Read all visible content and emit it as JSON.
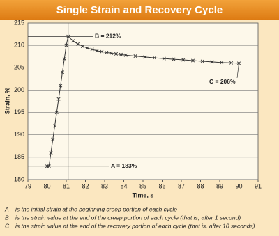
{
  "chart_data": {
    "type": "line",
    "title": "Single Strain and Recovery Cycle",
    "x_label": "Time, s",
    "y_label": "Strain, %",
    "x": [
      80.0,
      80.1,
      80.2,
      80.3,
      80.4,
      80.5,
      80.6,
      80.7,
      80.8,
      80.9,
      81.0,
      81.1,
      81.35,
      81.6,
      81.85,
      82.1,
      82.35,
      82.6,
      82.85,
      83.1,
      83.35,
      83.6,
      83.85,
      84.1,
      84.6,
      85.1,
      85.6,
      86.1,
      86.6,
      87.1,
      87.6,
      88.1,
      88.6,
      89.1,
      89.6,
      90.0
    ],
    "series": [
      {
        "name": "Strain",
        "color": "#333333",
        "values": [
          183,
          183,
          186,
          189,
          192,
          195,
          198,
          201,
          204,
          207,
          210,
          212,
          211.0,
          210.3,
          209.8,
          209.4,
          209.1,
          208.8,
          208.6,
          208.4,
          208.25,
          208.1,
          207.95,
          207.8,
          207.6,
          207.4,
          207.2,
          207.05,
          206.9,
          206.75,
          206.6,
          206.45,
          206.3,
          206.15,
          206.1,
          206.0
        ]
      }
    ],
    "xlim": [
      79,
      91
    ],
    "ylim": [
      180,
      215
    ],
    "xticks": [
      79,
      80,
      81,
      82,
      83,
      84,
      85,
      86,
      87,
      88,
      89,
      90,
      91
    ],
    "yticks": [
      180,
      185,
      190,
      195,
      200,
      205,
      210,
      215
    ],
    "grid": true,
    "annotations": [
      {
        "text": "B = 212%",
        "value": 212
      },
      {
        "text": "A = 183%",
        "value": 183
      },
      {
        "text": "C = 206%",
        "value": 206
      }
    ],
    "footnotes": [
      {
        "letter": "A",
        "text": "is the initial strain at the beginning creep portion of each cycle"
      },
      {
        "letter": "B",
        "text": "is the strain value at the end of the creep portion of each cycle (that is, after 1 second)"
      },
      {
        "letter": "C",
        "text": "is the strain value at the end of the recovery portion of each cycle (that is, after 10 seconds)"
      }
    ]
  }
}
